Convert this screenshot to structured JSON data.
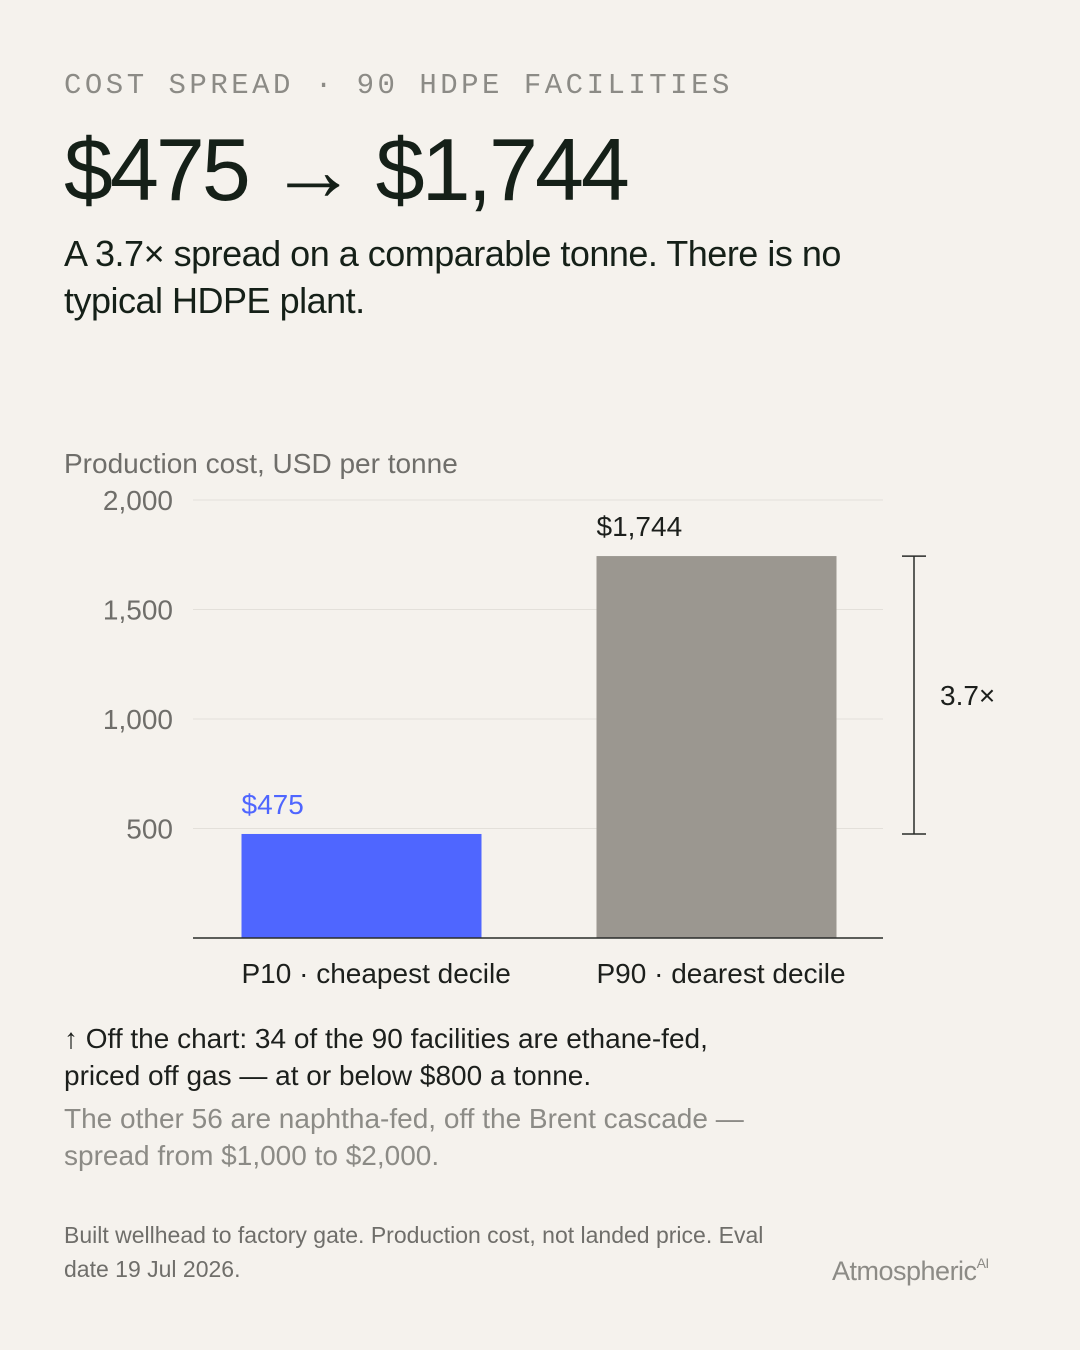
{
  "kicker": "COST SPREAD · 90 HDPE FACILITIES",
  "chart_data": {
    "type": "bar",
    "title": "$475 → $1,744",
    "subtitle": [
      "A 3.7× spread on a comparable tonne. There is no",
      "typical HDPE plant."
    ],
    "y_label": "Production cost, USD per tonne",
    "categories": [
      "P10 · cheapest decile",
      "P90 · dearest decile"
    ],
    "values": [
      475,
      1744
    ],
    "value_labels": [
      "$475",
      "$1,744"
    ],
    "colors": [
      "#4f66ff",
      "#9b9790"
    ],
    "value_label_colors": [
      "#4f66ff",
      "#1c1f1c"
    ],
    "ylim": [
      0,
      2000
    ],
    "yticks": [
      500,
      {
        "value": 1000,
        "label": "1,000"
      },
      {
        "value": 1500,
        "label": "1,500"
      },
      {
        "value": 2000,
        "label": "2,000"
      }
    ],
    "grid": true,
    "annotation": "3.7×"
  },
  "notes": {
    "highlight": [
      "↑ Off the chart: 34 of the 90 facilities are ethane-fed,",
      "priced off gas — at or below $800 a tonne."
    ],
    "secondary": [
      "The other 56 are naphtha-fed, off the Brent cascade —",
      "spread from $1,000 to $2,000."
    ]
  },
  "footer": [
    "Built wellhead to factory gate. Production cost, not landed price. Eval",
    "date 19 Jul 2026."
  ],
  "brand": {
    "name": "Atmospheric",
    "suffix": "AI"
  }
}
